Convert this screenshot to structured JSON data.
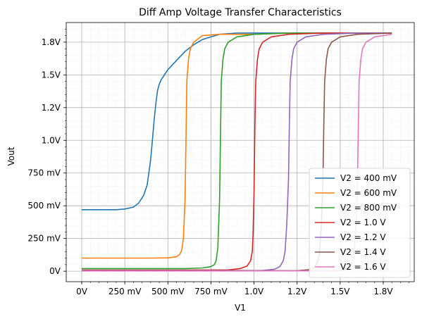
{
  "chart_data": {
    "type": "line",
    "title": "Diff Amp Voltage Transfer Characteristics",
    "xlabel": "V1",
    "ylabel": "Vout",
    "xlim": [
      -0.09,
      1.93
    ],
    "ylim": [
      -0.08,
      1.9
    ],
    "x_ticks": [
      {
        "value": 0,
        "label": "0V"
      },
      {
        "value": 0.25,
        "label": "250 mV"
      },
      {
        "value": 0.5,
        "label": "500 mV"
      },
      {
        "value": 0.75,
        "label": "750 mV"
      },
      {
        "value": 1.0,
        "label": "1.0V"
      },
      {
        "value": 1.25,
        "label": "1.2V"
      },
      {
        "value": 1.5,
        "label": "1.5V"
      },
      {
        "value": 1.75,
        "label": "1.8V"
      }
    ],
    "y_ticks": [
      {
        "value": 0,
        "label": "0V"
      },
      {
        "value": 0.25,
        "label": "250 mV"
      },
      {
        "value": 0.5,
        "label": "500 mV"
      },
      {
        "value": 0.75,
        "label": "750 mV"
      },
      {
        "value": 1.0,
        "label": "1.0V"
      },
      {
        "value": 1.25,
        "label": "1.2V"
      },
      {
        "value": 1.5,
        "label": "1.5V"
      },
      {
        "value": 1.75,
        "label": "1.8V"
      }
    ],
    "grid": true,
    "minor_grid": true,
    "legend_position": "lower-right",
    "series": [
      {
        "name": "V2 = 400 mV",
        "color": "#1f77b4",
        "x": [
          0,
          0.1,
          0.2,
          0.25,
          0.3,
          0.33,
          0.36,
          0.38,
          0.4,
          0.41,
          0.42,
          0.43,
          0.44,
          0.45,
          0.46,
          0.48,
          0.5,
          0.55,
          0.6,
          0.65,
          0.7,
          0.75,
          0.8,
          0.9,
          1.0,
          1.2,
          1.4,
          1.6,
          1.8
        ],
        "y": [
          0.47,
          0.47,
          0.47,
          0.475,
          0.49,
          0.52,
          0.58,
          0.66,
          0.85,
          1.0,
          1.15,
          1.28,
          1.38,
          1.43,
          1.46,
          1.5,
          1.54,
          1.61,
          1.68,
          1.73,
          1.77,
          1.79,
          1.81,
          1.82,
          1.82,
          1.82,
          1.82,
          1.82,
          1.82
        ]
      },
      {
        "name": "V2 = 600 mV",
        "color": "#ff7f0e",
        "x": [
          0,
          0.2,
          0.4,
          0.5,
          0.55,
          0.57,
          0.58,
          0.59,
          0.6,
          0.605,
          0.61,
          0.62,
          0.63,
          0.65,
          0.7,
          0.8,
          1.0,
          1.2,
          1.4,
          1.6,
          1.8
        ],
        "y": [
          0.1,
          0.1,
          0.1,
          0.102,
          0.11,
          0.13,
          0.16,
          0.25,
          0.55,
          1.0,
          1.45,
          1.62,
          1.7,
          1.75,
          1.8,
          1.81,
          1.81,
          1.82,
          1.82,
          1.82,
          1.82
        ]
      },
      {
        "name": "V2 = 800 mV",
        "color": "#2ca02c",
        "x": [
          0,
          0.3,
          0.6,
          0.7,
          0.75,
          0.77,
          0.78,
          0.79,
          0.8,
          0.805,
          0.81,
          0.82,
          0.83,
          0.85,
          0.9,
          1.0,
          1.2,
          1.4,
          1.6,
          1.8
        ],
        "y": [
          0.02,
          0.02,
          0.02,
          0.025,
          0.035,
          0.05,
          0.08,
          0.18,
          0.55,
          1.0,
          1.45,
          1.62,
          1.7,
          1.75,
          1.79,
          1.81,
          1.82,
          1.82,
          1.82,
          1.82
        ]
      },
      {
        "name": "V2 = 1.0 V",
        "color": "#d62728",
        "x": [
          0,
          0.5,
          0.85,
          0.92,
          0.96,
          0.98,
          0.99,
          0.995,
          1.0,
          1.005,
          1.01,
          1.02,
          1.03,
          1.05,
          1.1,
          1.2,
          1.4,
          1.6,
          1.8
        ],
        "y": [
          0.008,
          0.008,
          0.01,
          0.02,
          0.04,
          0.08,
          0.15,
          0.3,
          0.6,
          1.1,
          1.45,
          1.62,
          1.7,
          1.75,
          1.79,
          1.81,
          1.82,
          1.82,
          1.82
        ]
      },
      {
        "name": "V2 = 1.2 V",
        "color": "#9467bd",
        "x": [
          0,
          0.6,
          1.05,
          1.12,
          1.15,
          1.17,
          1.18,
          1.19,
          1.2,
          1.205,
          1.21,
          1.22,
          1.23,
          1.25,
          1.3,
          1.4,
          1.6,
          1.8
        ],
        "y": [
          0.005,
          0.005,
          0.006,
          0.015,
          0.035,
          0.08,
          0.15,
          0.35,
          0.7,
          1.1,
          1.45,
          1.62,
          1.7,
          1.75,
          1.79,
          1.81,
          1.82,
          1.82
        ]
      },
      {
        "name": "V2 = 1.4 V",
        "color": "#8c564b",
        "x": [
          0,
          0.7,
          1.25,
          1.32,
          1.35,
          1.37,
          1.38,
          1.39,
          1.4,
          1.405,
          1.41,
          1.42,
          1.43,
          1.45,
          1.5,
          1.6,
          1.8
        ],
        "y": [
          0.003,
          0.003,
          0.004,
          0.012,
          0.03,
          0.07,
          0.14,
          0.33,
          0.7,
          1.1,
          1.45,
          1.62,
          1.7,
          1.75,
          1.79,
          1.81,
          1.82
        ]
      },
      {
        "name": "V2 = 1.6 V",
        "color": "#e377c2",
        "x": [
          0,
          0.8,
          1.45,
          1.52,
          1.55,
          1.57,
          1.58,
          1.59,
          1.6,
          1.605,
          1.61,
          1.62,
          1.63,
          1.65,
          1.7,
          1.8
        ],
        "y": [
          0.002,
          0.002,
          0.003,
          0.01,
          0.025,
          0.06,
          0.13,
          0.3,
          0.65,
          1.05,
          1.45,
          1.62,
          1.7,
          1.75,
          1.79,
          1.81
        ]
      }
    ]
  }
}
